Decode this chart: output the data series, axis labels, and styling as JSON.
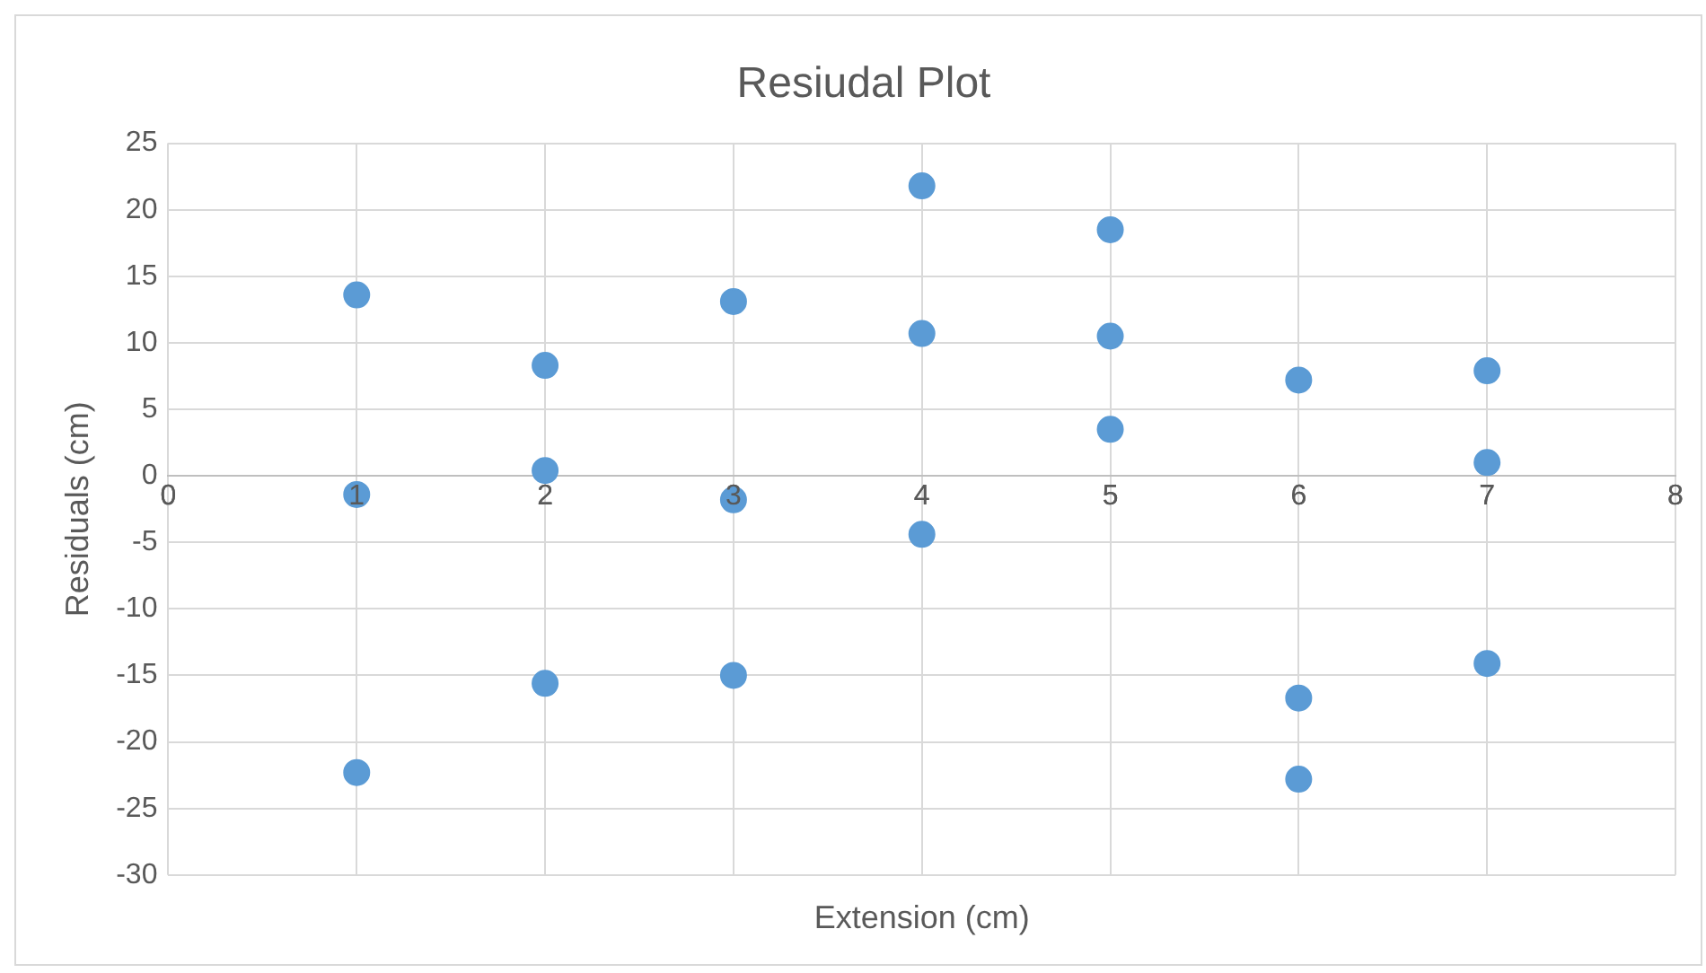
{
  "chart_data": {
    "type": "scatter",
    "title": "Resiudal Plot",
    "xlabel": "Extension (cm)",
    "ylabel": "Residuals (cm)",
    "x": [
      1,
      1,
      1,
      2,
      2,
      2,
      3,
      3,
      3,
      4,
      4,
      4,
      5,
      5,
      5,
      6,
      6,
      6,
      7,
      7,
      7
    ],
    "series": [
      {
        "color": "#5b9bd5",
        "values": [
          13.6,
          -1.4,
          -22.3,
          8.3,
          0.4,
          -15.6,
          13.1,
          -1.8,
          -15.0,
          21.8,
          10.7,
          -4.4,
          18.5,
          10.5,
          3.5,
          7.2,
          -16.7,
          -22.8,
          7.9,
          1.0,
          -14.1
        ]
      }
    ],
    "xlim": [
      0,
      8
    ],
    "xticks": [
      0,
      1,
      2,
      3,
      4,
      5,
      6,
      7,
      8
    ],
    "ylim": [
      -30,
      25
    ],
    "yticks": [
      -30,
      -25,
      -20,
      -15,
      -10,
      -5,
      0,
      5,
      10,
      15,
      20,
      25
    ],
    "grid": true,
    "legend": false,
    "marker": "circle"
  }
}
